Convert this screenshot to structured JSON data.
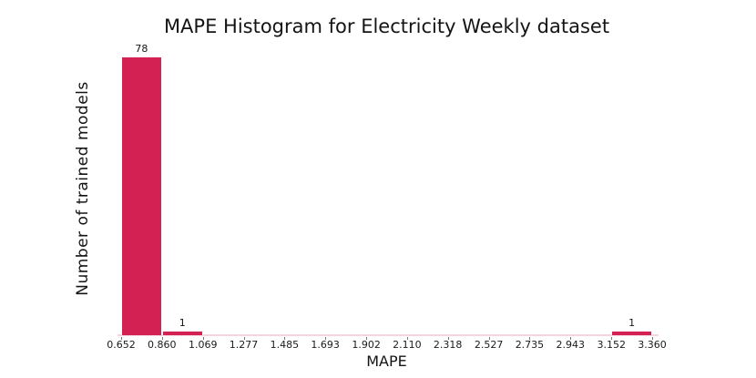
{
  "chart_data": {
    "type": "bar",
    "subtype": "histogram",
    "title": "MAPE Histogram for Electricity Weekly dataset",
    "xlabel": "MAPE",
    "ylabel": "Number of trained models",
    "bin_edges": [
      0.652,
      0.86,
      1.069,
      1.277,
      1.485,
      1.693,
      1.902,
      2.11,
      2.318,
      2.527,
      2.735,
      2.943,
      3.152,
      3.36
    ],
    "tick_labels": [
      "0.652",
      "0.860",
      "1.069",
      "1.277",
      "1.485",
      "1.693",
      "1.902",
      "2.110",
      "2.318",
      "2.527",
      "2.735",
      "2.943",
      "3.152",
      "3.360"
    ],
    "counts": [
      78,
      1,
      0,
      0,
      0,
      0,
      0,
      0,
      0,
      0,
      0,
      0,
      1
    ],
    "bar_labels": [
      "78",
      "1",
      "",
      "",
      "",
      "",
      "",
      "",
      "",
      "",
      "",
      "",
      "1"
    ],
    "ylim": [
      0,
      78
    ],
    "xlim": [
      0.652,
      3.36
    ],
    "bar_color": "#d32154",
    "axis_line_color": "#f6d4dc",
    "tick_color": "#777777",
    "grid": false,
    "legend": null
  }
}
